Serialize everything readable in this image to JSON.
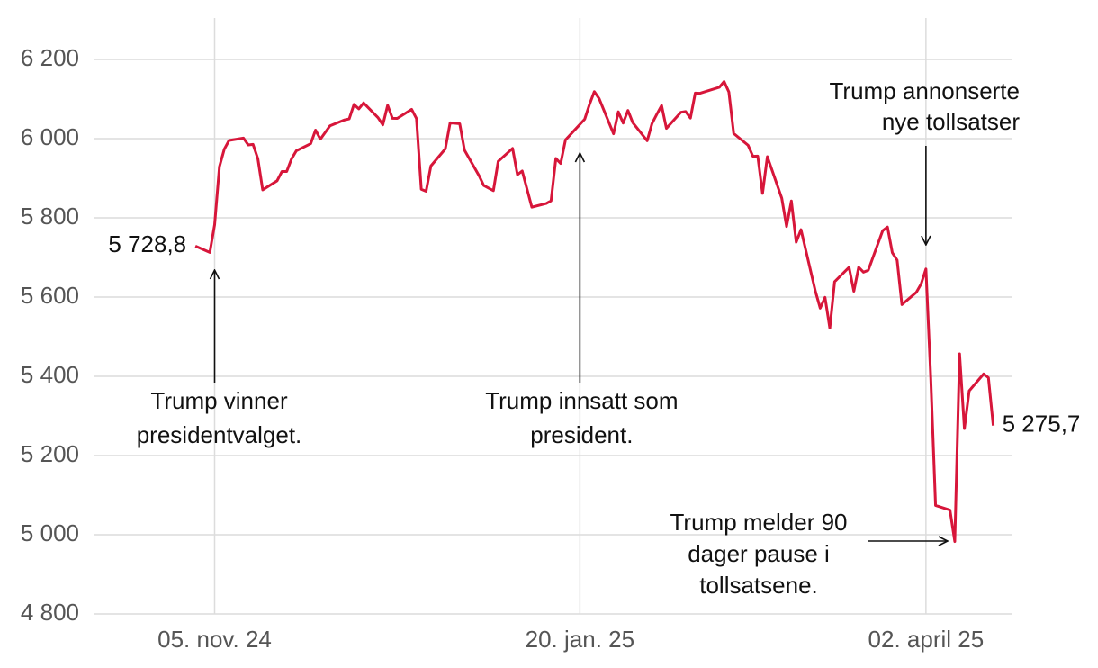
{
  "chart_data": {
    "type": "line",
    "x": [
      "2024-11-01",
      "2024-11-04",
      "2024-11-05",
      "2024-11-06",
      "2024-11-07",
      "2024-11-08",
      "2024-11-11",
      "2024-11-12",
      "2024-11-13",
      "2024-11-14",
      "2024-11-15",
      "2024-11-18",
      "2024-11-19",
      "2024-11-20",
      "2024-11-21",
      "2024-11-22",
      "2024-11-25",
      "2024-11-26",
      "2024-11-27",
      "2024-11-29",
      "2024-12-02",
      "2024-12-03",
      "2024-12-04",
      "2024-12-05",
      "2024-12-06",
      "2024-12-09",
      "2024-12-10",
      "2024-12-11",
      "2024-12-12",
      "2024-12-13",
      "2024-12-16",
      "2024-12-17",
      "2024-12-18",
      "2024-12-19",
      "2024-12-20",
      "2024-12-23",
      "2024-12-24",
      "2024-12-26",
      "2024-12-27",
      "2024-12-30",
      "2024-12-31",
      "2025-01-02",
      "2025-01-03",
      "2025-01-06",
      "2025-01-07",
      "2025-01-08",
      "2025-01-10",
      "2025-01-13",
      "2025-01-14",
      "2025-01-15",
      "2025-01-16",
      "2025-01-17",
      "2025-01-21",
      "2025-01-22",
      "2025-01-23",
      "2025-01-24",
      "2025-01-27",
      "2025-01-28",
      "2025-01-29",
      "2025-01-30",
      "2025-01-31",
      "2025-02-03",
      "2025-02-04",
      "2025-02-05",
      "2025-02-06",
      "2025-02-07",
      "2025-02-10",
      "2025-02-11",
      "2025-02-12",
      "2025-02-13",
      "2025-02-14",
      "2025-02-18",
      "2025-02-19",
      "2025-02-20",
      "2025-02-21",
      "2025-02-24",
      "2025-02-25",
      "2025-02-26",
      "2025-02-27",
      "2025-02-28",
      "2025-03-03",
      "2025-03-04",
      "2025-03-05",
      "2025-03-06",
      "2025-03-07",
      "2025-03-10",
      "2025-03-11",
      "2025-03-12",
      "2025-03-13",
      "2025-03-14",
      "2025-03-17",
      "2025-03-18",
      "2025-03-19",
      "2025-03-20",
      "2025-03-21",
      "2025-03-24",
      "2025-03-25",
      "2025-03-26",
      "2025-03-27",
      "2025-03-28",
      "2025-03-31",
      "2025-04-01",
      "2025-04-02",
      "2025-04-03",
      "2025-04-04",
      "2025-04-07",
      "2025-04-08",
      "2025-04-09",
      "2025-04-10",
      "2025-04-11",
      "2025-04-14",
      "2025-04-15",
      "2025-04-16"
    ],
    "series": [
      {
        "color": "#d7163a",
        "values": [
          5728.8,
          5712.7,
          5782.8,
          5929.0,
          5973.1,
          5995.5,
          6001.4,
          5984.0,
          5985.4,
          5949.2,
          5870.6,
          5893.6,
          5917.0,
          5917.1,
          5948.7,
          5969.3,
          5987.4,
          6021.6,
          5998.7,
          6032.4,
          6047.2,
          6049.9,
          6086.5,
          6075.1,
          6090.3,
          6052.9,
          6034.9,
          6084.2,
          6051.3,
          6051.1,
          6074.1,
          6050.6,
          5872.2,
          5867.1,
          5930.9,
          5974.1,
          6040.0,
          6037.6,
          5970.8,
          5906.9,
          5881.6,
          5868.6,
          5942.5,
          5975.4,
          5909.0,
          5918.3,
          5827.0,
          5836.2,
          5842.9,
          5949.9,
          5937.3,
          5996.7,
          6049.2,
          6086.4,
          6118.7,
          6101.2,
          6012.3,
          6067.7,
          6039.3,
          6071.2,
          6040.5,
          5994.6,
          6037.9,
          6061.5,
          6083.6,
          6026.0,
          6066.4,
          6068.5,
          6052.0,
          6115.1,
          6114.6,
          6129.6,
          6144.2,
          6117.5,
          6013.1,
          5983.3,
          5955.3,
          5956.1,
          5861.6,
          5954.5,
          5849.7,
          5778.2,
          5842.6,
          5738.5,
          5770.2,
          5614.6,
          5572.1,
          5599.3,
          5521.5,
          5638.9,
          5675.1,
          5614.7,
          5675.3,
          5662.9,
          5667.6,
          5767.6,
          5776.7,
          5712.2,
          5693.3,
          5580.9,
          5611.9,
          5633.1,
          5671.0,
          5396.5,
          5074.1,
          5062.3,
          4982.8,
          5456.9,
          5268.1,
          5363.4,
          5406.0,
          5396.6,
          5275.7
        ],
        "value_labels": [
          "5 728,8",
          null,
          null,
          null,
          null,
          null,
          null,
          null,
          null,
          null,
          null,
          null,
          null,
          null,
          null,
          null,
          null,
          null,
          null,
          null,
          null,
          null,
          null,
          null,
          null,
          null,
          null,
          null,
          null,
          null,
          null,
          null,
          null,
          null,
          null,
          null,
          null,
          null,
          null,
          null,
          null,
          null,
          null,
          null,
          null,
          null,
          null,
          null,
          null,
          null,
          null,
          null,
          null,
          null,
          null,
          null,
          null,
          null,
          null,
          null,
          null,
          null,
          null,
          null,
          null,
          null,
          null,
          null,
          null,
          null,
          null,
          null,
          null,
          null,
          null,
          null,
          null,
          null,
          null,
          null,
          null,
          null,
          null,
          null,
          null,
          null,
          null,
          null,
          null,
          null,
          null,
          null,
          null,
          null,
          null,
          null,
          null,
          null,
          null,
          null,
          null,
          null,
          null,
          null,
          null,
          null,
          null,
          null,
          null,
          null,
          null,
          null,
          "5 275,7"
        ]
      }
    ],
    "xlim": [
      "2024-10-11",
      "2025-04-20"
    ],
    "xticks": [
      {
        "value": "2024-11-05",
        "label": "05. nov. 24"
      },
      {
        "value": "2025-01-20",
        "label": "20. jan. 25"
      },
      {
        "value": "2025-04-02",
        "label": "02. april 25"
      }
    ],
    "ylim": [
      4800,
      6200
    ],
    "yticks": [
      {
        "value": 4800,
        "label": "4 800"
      },
      {
        "value": 5000,
        "label": "5 000"
      },
      {
        "value": 5200,
        "label": "5 200"
      },
      {
        "value": 5400,
        "label": "5 400"
      },
      {
        "value": 5600,
        "label": "5 600"
      },
      {
        "value": 5800,
        "label": "5 800"
      },
      {
        "value": 6000,
        "label": "6 000"
      },
      {
        "value": 6200,
        "label": "6 200"
      }
    ],
    "grid": true,
    "annotations": [
      {
        "x": "2024-11-05",
        "lines": [
          "Trump vinner",
          "presidentvalget."
        ]
      },
      {
        "x": "2025-01-20",
        "lines": [
          "Trump innsatt som",
          "president."
        ]
      },
      {
        "x": "2025-04-02",
        "lines": [
          "Trump annonserte",
          "nye tollsatser"
        ]
      },
      {
        "x": "2025-04-08",
        "lines": [
          "Trump melder 90",
          "dager pause i",
          "tollsatsene."
        ]
      }
    ]
  }
}
